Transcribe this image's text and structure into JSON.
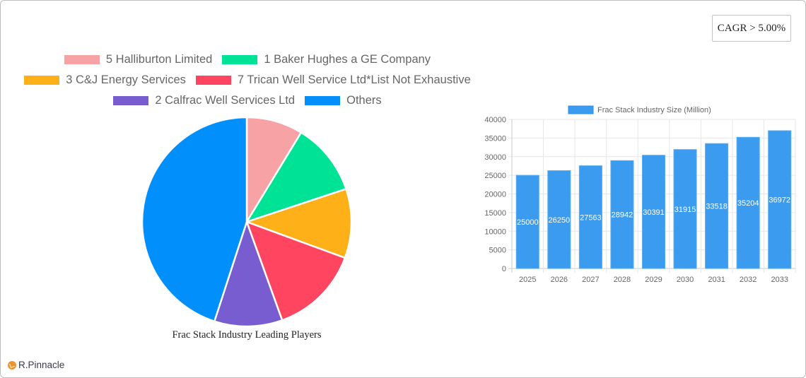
{
  "badge": {
    "cagr_label": "CAGR > 5.00%"
  },
  "brand": {
    "name": "R.Pinnacle"
  },
  "chart_data": [
    {
      "type": "pie",
      "title": "Frac Stack Industry Leading Players",
      "legend_position": "top",
      "categories": [
        "5 Halliburton Limited",
        "1 Baker Hughes a GE Company",
        "3 C&J Energy Services",
        "7 Trican Well Service Ltd*List Not Exhaustive",
        "2 Calfrac Well Services Ltd",
        "Others"
      ],
      "values": [
        8.7,
        11.2,
        10.7,
        13.9,
        10.5,
        45.0
      ],
      "colors": [
        "#f7a3a6",
        "#00e396",
        "#feb019",
        "#ff4560",
        "#775dd0",
        "#008ffb"
      ]
    },
    {
      "type": "bar",
      "title": "",
      "legend": [
        "Frac Stack Industry Size (Million)"
      ],
      "legend_position": "top",
      "categories": [
        "2025",
        "2026",
        "2027",
        "2028",
        "2029",
        "2030",
        "2031",
        "2032",
        "2033"
      ],
      "series": [
        {
          "name": "Frac Stack Industry Size (Million)",
          "values": [
            25000,
            26250,
            27563,
            28942,
            30391,
            31915,
            33518,
            35204,
            36972
          ]
        }
      ],
      "xlabel": "",
      "ylabel": "",
      "ylim": [
        0,
        40000
      ],
      "yticks": [
        0,
        5000,
        10000,
        15000,
        20000,
        25000,
        30000,
        35000,
        40000
      ],
      "grid": true,
      "data_labels": true,
      "color": "#3b9bef"
    }
  ]
}
